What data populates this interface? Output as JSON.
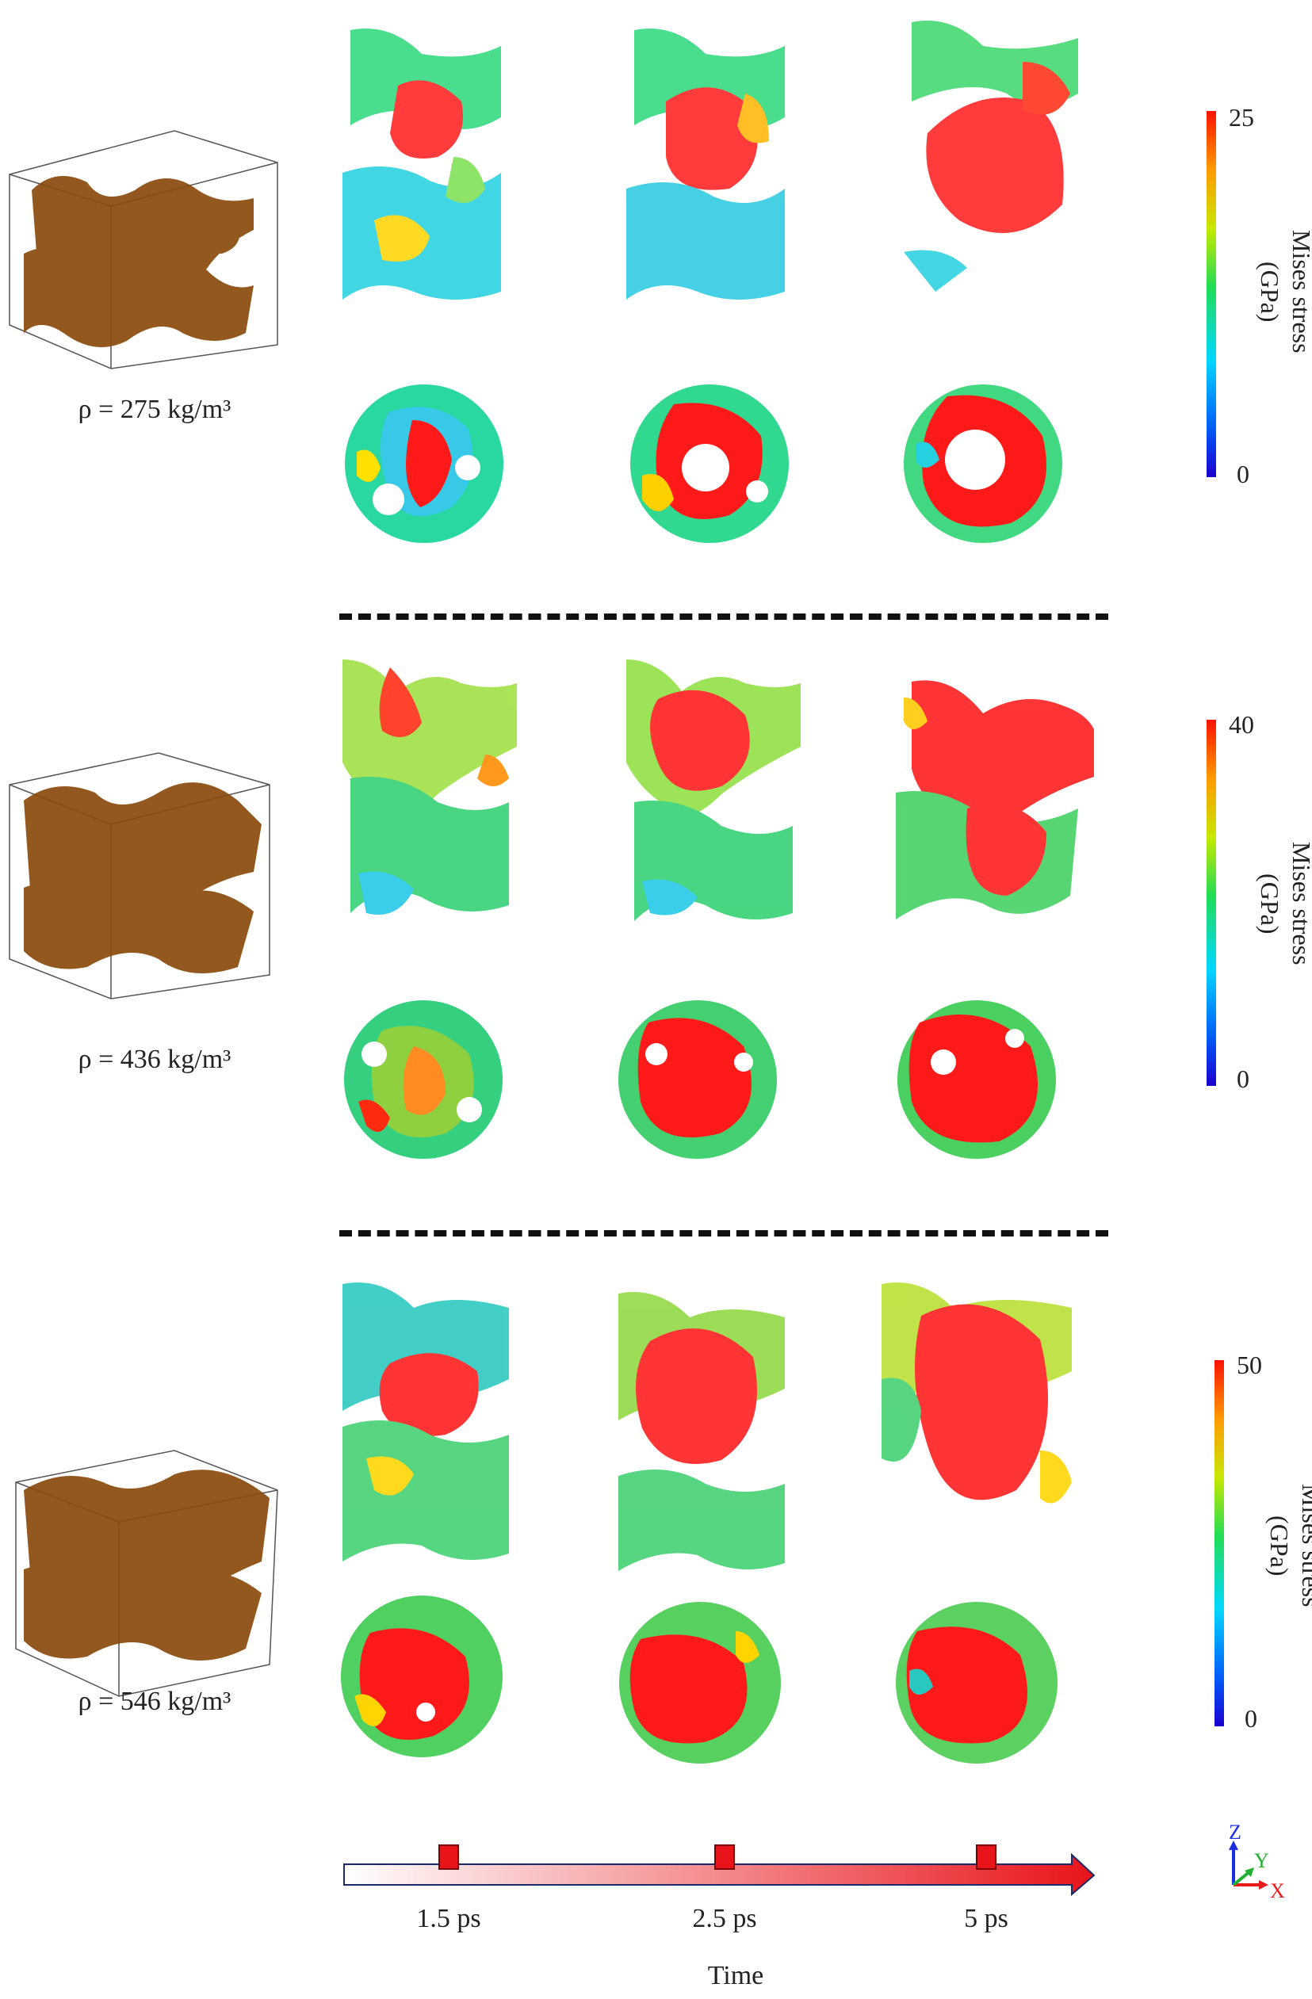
{
  "rows": [
    {
      "density_label": "ρ = 275 kg/m³",
      "colorbar": {
        "max": "25",
        "min": "0",
        "label_line1": "Mises stress",
        "label_line2": "(GPa)"
      }
    },
    {
      "density_label": "ρ = 436 kg/m³",
      "colorbar": {
        "max": "40",
        "min": "0",
        "label_line1": "Mises stress",
        "label_line2": "(GPa)"
      }
    },
    {
      "density_label": "ρ = 546 kg/m³",
      "colorbar": {
        "max": "50",
        "min": "0",
        "label_line1": "Mises stress",
        "label_line2": "(GPa)"
      }
    }
  ],
  "time_points": [
    "1.5 ps",
    "2.5 ps",
    "5 ps"
  ],
  "time_axis_title": "Time",
  "axes_triad": {
    "z": "Z",
    "y": "Y",
    "x": "X"
  },
  "colors": {
    "foam": "#8a4a0c",
    "stress_low": "#1a00d0",
    "stress_high": "#ff1200",
    "arrow": "#e8141a"
  }
}
